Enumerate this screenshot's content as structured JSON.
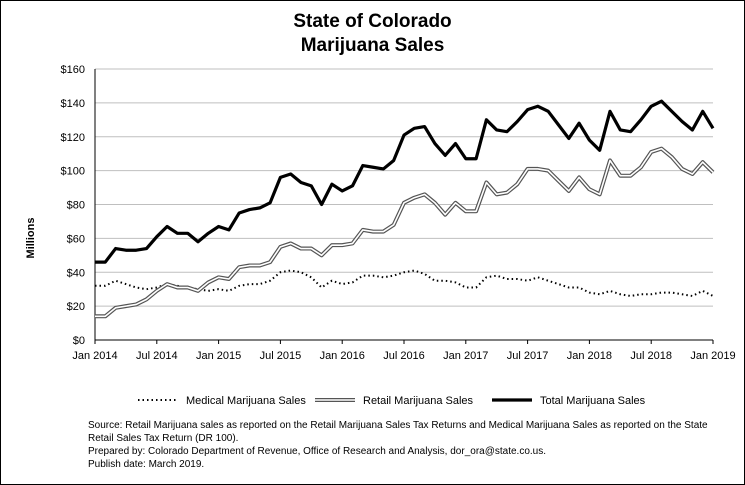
{
  "chart_data": {
    "type": "line",
    "title": "State of Colorado",
    "subtitle": "Marijuana Sales",
    "ylabel": "Millions",
    "xlabel": "",
    "ylim": [
      0,
      160
    ],
    "y_ticks": [
      "$0",
      "$20",
      "$40",
      "$60",
      "$80",
      "$100",
      "$120",
      "$140",
      "$160"
    ],
    "x_ticks": [
      "Jan 2014",
      "Jul 2014",
      "Jan 2015",
      "Jul 2015",
      "Jan 2016",
      "Jul 2016",
      "Jan 2017",
      "Jul 2017",
      "Jan 2018",
      "Jul 2018",
      "Jan 2019"
    ],
    "grid": true,
    "legend_position": "bottom",
    "x": [
      "Jan 2014",
      "Feb 2014",
      "Mar 2014",
      "Apr 2014",
      "May 2014",
      "Jun 2014",
      "Jul 2014",
      "Aug 2014",
      "Sep 2014",
      "Oct 2014",
      "Nov 2014",
      "Dec 2014",
      "Jan 2015",
      "Feb 2015",
      "Mar 2015",
      "Apr 2015",
      "May 2015",
      "Jun 2015",
      "Jul 2015",
      "Aug 2015",
      "Sep 2015",
      "Oct 2015",
      "Nov 2015",
      "Dec 2015",
      "Jan 2016",
      "Feb 2016",
      "Mar 2016",
      "Apr 2016",
      "May 2016",
      "Jun 2016",
      "Jul 2016",
      "Aug 2016",
      "Sep 2016",
      "Oct 2016",
      "Nov 2016",
      "Dec 2016",
      "Jan 2017",
      "Feb 2017",
      "Mar 2017",
      "Apr 2017",
      "May 2017",
      "Jun 2017",
      "Jul 2017",
      "Aug 2017",
      "Sep 2017",
      "Oct 2017",
      "Nov 2017",
      "Dec 2017",
      "Jan 2018",
      "Feb 2018",
      "Mar 2018",
      "Apr 2018",
      "May 2018",
      "Jun 2018",
      "Jul 2018",
      "Aug 2018",
      "Sep 2018",
      "Oct 2018",
      "Nov 2018",
      "Dec 2018",
      "Jan 2019"
    ],
    "series": [
      {
        "name": "Medical Marijuana Sales",
        "style": "dotted",
        "color": "#000000",
        "values": [
          32,
          32,
          35,
          33,
          31,
          30,
          31,
          33,
          32,
          31,
          30,
          29,
          30,
          29,
          32,
          33,
          33,
          35,
          40,
          41,
          40,
          37,
          31,
          35,
          33,
          34,
          38,
          38,
          37,
          38,
          40,
          41,
          39,
          35,
          35,
          34,
          31,
          31,
          37,
          38,
          36,
          36,
          35,
          37,
          35,
          33,
          31,
          31,
          28,
          27,
          29,
          27,
          26,
          27,
          27,
          28,
          28,
          27,
          26,
          29,
          26
        ]
      },
      {
        "name": "Retail Marijuana Sales",
        "style": "double",
        "color": "#808080",
        "values": [
          14,
          14,
          19,
          20,
          21,
          24,
          29,
          33,
          31,
          31,
          29,
          34,
          37,
          36,
          43,
          44,
          44,
          46,
          55,
          57,
          54,
          54,
          50,
          56,
          56,
          57,
          65,
          64,
          64,
          68,
          81,
          84,
          86,
          81,
          74,
          81,
          76,
          76,
          93,
          86,
          87,
          92,
          101,
          101,
          100,
          94,
          88,
          96,
          89,
          86,
          106,
          97,
          97,
          102,
          111,
          113,
          108,
          101,
          98,
          105,
          99
        ]
      },
      {
        "name": "Total Marijuana Sales",
        "style": "thick",
        "color": "#000000",
        "values": [
          46,
          46,
          54,
          53,
          53,
          54,
          61,
          67,
          63,
          63,
          58,
          63,
          67,
          65,
          75,
          77,
          78,
          81,
          96,
          98,
          93,
          91,
          80,
          92,
          88,
          91,
          103,
          102,
          101,
          106,
          121,
          125,
          126,
          116,
          109,
          116,
          107,
          107,
          130,
          124,
          123,
          129,
          136,
          138,
          135,
          127,
          119,
          128,
          118,
          112,
          135,
          124,
          123,
          130,
          138,
          141,
          135,
          129,
          124,
          135,
          125
        ]
      }
    ]
  },
  "footnote": {
    "source": "Source: Retail Marijuana sales as reported on the Retail Marijuana Sales Tax Returns and Medical Marijuana Sales as reported on the State Retail Sales Tax Return (DR 100).",
    "prepared": "Prepared by: Colorado Department of Revenue, Office of Research and Analysis, dor_ora@state.co.us.",
    "publish": "Publish date: March 2019."
  }
}
